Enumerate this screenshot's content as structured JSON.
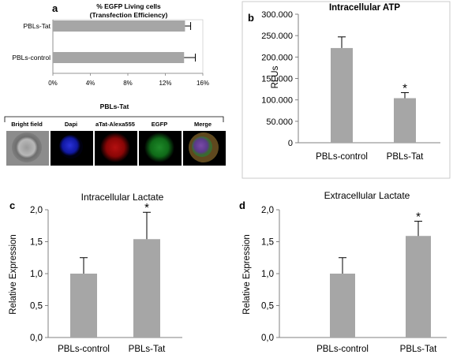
{
  "panels": {
    "a": {
      "letter": "a",
      "title_line1": "% EGFP Living cells",
      "title_line2": "(Transfection Efficiency)",
      "micro_title": "PBLs-Tat",
      "micro_labels": [
        "Bright field",
        "Dapi",
        "aTat-Alexa555",
        "EGFP",
        "Merge"
      ]
    },
    "b": {
      "letter": "b"
    },
    "c": {
      "letter": "c"
    },
    "d": {
      "letter": "d"
    }
  },
  "colors": {
    "bar": "#a6a6a6",
    "axis": "#808080"
  },
  "chart_data": [
    {
      "id": "a",
      "type": "bar",
      "orientation": "horizontal",
      "categories": [
        "PBLs-Tat",
        "PBLs-control"
      ],
      "values": [
        14.1,
        14.0
      ],
      "errors": [
        0.6,
        1.2
      ],
      "title": "% EGFP Living cells (Transfection Efficiency)",
      "xlim": [
        0,
        16
      ],
      "xticks": [
        "0%",
        "4%",
        "8%",
        "12%",
        "16%"
      ],
      "tick_values": [
        0,
        4,
        8,
        12,
        16
      ],
      "grid": false
    },
    {
      "id": "b",
      "type": "bar",
      "categories": [
        "PBLs-control",
        "PBLs-Tat"
      ],
      "values": [
        221000,
        104000
      ],
      "errors": [
        26000,
        13000
      ],
      "title": "Intracellular ATP",
      "ylabel": "RLUs",
      "ylim": [
        0,
        300000
      ],
      "yticks": [
        "0",
        "50.000",
        "100.000",
        "150.000",
        "200.000",
        "250.000",
        "300.000"
      ],
      "tick_values": [
        0,
        50000,
        100000,
        150000,
        200000,
        250000,
        300000
      ],
      "significance": [
        "",
        "*"
      ],
      "grid": false
    },
    {
      "id": "c",
      "type": "bar",
      "categories": [
        "PBLs-control",
        "PBLs-Tat"
      ],
      "values": [
        1.0,
        1.54
      ],
      "errors": [
        0.25,
        0.42
      ],
      "title": "Intracellular Lactate",
      "ylabel": "Relative Expression",
      "ylim": [
        0,
        2.0
      ],
      "yticks": [
        "0,0",
        "0,5",
        "1,0",
        "1,5",
        "2,0"
      ],
      "tick_values": [
        0,
        0.5,
        1.0,
        1.5,
        2.0
      ],
      "significance": [
        "",
        "*"
      ],
      "grid": false
    },
    {
      "id": "d",
      "type": "bar",
      "categories": [
        "PBLs-control",
        "PBLs-Tat"
      ],
      "values": [
        1.0,
        1.59
      ],
      "errors": [
        0.25,
        0.23
      ],
      "title": "Extracellular Lactate",
      "ylabel": "Relative Expression",
      "ylim": [
        0,
        2.0
      ],
      "yticks": [
        "0,0",
        "0,5",
        "1,0",
        "1,5",
        "2,0"
      ],
      "tick_values": [
        0,
        0.5,
        1.0,
        1.5,
        2.0
      ],
      "significance": [
        "",
        "*"
      ],
      "grid": false
    }
  ]
}
